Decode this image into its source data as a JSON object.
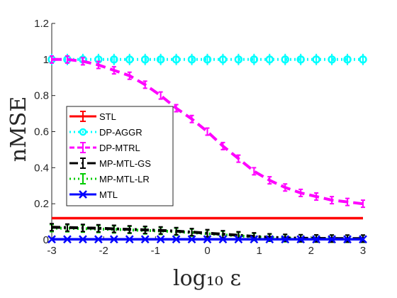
{
  "chart_data": {
    "type": "line",
    "xlabel": "log₁₀ ε",
    "ylabel": "nMSE",
    "xlim": [
      -3,
      3
    ],
    "ylim": [
      0,
      1.2
    ],
    "x_ticks": [
      "-3",
      "-2",
      "-1",
      "0",
      "1",
      "2",
      "3"
    ],
    "y_ticks": [
      "0",
      "0.2",
      "0.4",
      "0.6",
      "0.8",
      "1",
      "1.2"
    ],
    "grid": false,
    "legend_position": "center-left",
    "x": [
      -3.0,
      -2.7,
      -2.4,
      -2.1,
      -1.8,
      -1.5,
      -1.2,
      -0.9,
      -0.6,
      -0.3,
      0.0,
      0.3,
      0.6,
      0.9,
      1.2,
      1.5,
      1.8,
      2.1,
      2.4,
      2.7,
      3.0
    ],
    "series": [
      {
        "name": "STL",
        "color": "#ff0000",
        "style": "solid",
        "marker": "none",
        "values": [
          0.12,
          0.12,
          0.12,
          0.12,
          0.12,
          0.12,
          0.12,
          0.12,
          0.12,
          0.12,
          0.12,
          0.12,
          0.12,
          0.12,
          0.12,
          0.12,
          0.12,
          0.12,
          0.12,
          0.12,
          0.12
        ]
      },
      {
        "name": "DP-AGGR",
        "color": "#00ffff",
        "style": "dotted",
        "marker": "circle",
        "values": [
          1.0,
          1.0,
          1.0,
          1.0,
          1.0,
          1.0,
          1.0,
          1.0,
          1.0,
          1.0,
          1.0,
          1.0,
          1.0,
          1.0,
          1.0,
          1.0,
          1.0,
          1.0,
          1.0,
          1.0,
          1.0
        ]
      },
      {
        "name": "DP-MTRL",
        "color": "#ff00ff",
        "style": "dashed",
        "marker": "errorbar",
        "values": [
          1.0,
          1.0,
          0.99,
          0.97,
          0.94,
          0.91,
          0.86,
          0.8,
          0.73,
          0.67,
          0.6,
          0.52,
          0.45,
          0.38,
          0.33,
          0.29,
          0.26,
          0.24,
          0.22,
          0.21,
          0.2
        ]
      },
      {
        "name": "MP-MTL-GS",
        "color": "#000000",
        "style": "dashdot",
        "marker": "errorbar",
        "values": [
          0.07,
          0.068,
          0.066,
          0.064,
          0.061,
          0.058,
          0.055,
          0.052,
          0.048,
          0.043,
          0.037,
          0.031,
          0.025,
          0.019,
          0.014,
          0.011,
          0.009,
          0.008,
          0.007,
          0.007,
          0.007
        ]
      },
      {
        "name": "MP-MTL-LR",
        "color": "#00cc00",
        "style": "dotted",
        "marker": "errorbar",
        "values": [
          0.065,
          0.064,
          0.062,
          0.06,
          0.058,
          0.055,
          0.052,
          0.049,
          0.045,
          0.04,
          0.034,
          0.028,
          0.022,
          0.016,
          0.012,
          0.009,
          0.008,
          0.007,
          0.007,
          0.006,
          0.006
        ]
      },
      {
        "name": "MTL",
        "color": "#0000ff",
        "style": "solid",
        "marker": "x",
        "values": [
          0.003,
          0.003,
          0.003,
          0.003,
          0.003,
          0.003,
          0.003,
          0.003,
          0.003,
          0.003,
          0.003,
          0.003,
          0.003,
          0.003,
          0.003,
          0.003,
          0.003,
          0.003,
          0.003,
          0.003,
          0.003
        ]
      }
    ]
  }
}
